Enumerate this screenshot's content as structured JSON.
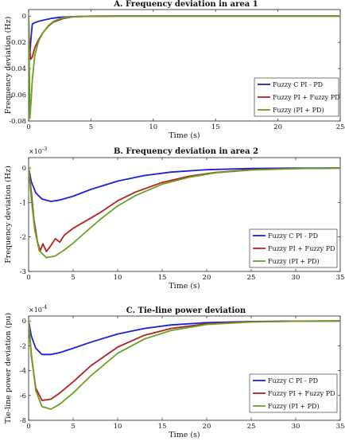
{
  "chart_data": [
    {
      "type": "line",
      "title": "A. Frequency deviation in area 1",
      "xlabel": "Time (s)",
      "ylabel": "Frequency deviation (Hz)",
      "xlim": [
        0,
        25
      ],
      "ylim": [
        -0.08,
        0.005
      ],
      "xticks": [
        0,
        5,
        10,
        15,
        20,
        25
      ],
      "xtick_labels": [
        "0",
        "5",
        "10",
        "15",
        "20",
        "25"
      ],
      "yticks": [
        0,
        -0.02,
        -0.04,
        -0.06,
        -0.08
      ],
      "ytick_labels": [
        "0",
        "-0.02",
        "-0.04",
        "-0.06",
        "-0.08"
      ],
      "exponent_label": "",
      "legend_position": "lower-right",
      "series": [
        {
          "name": "Fuzzy C PI - PD",
          "color": "#1f1fd6",
          "x": [
            0,
            0.05,
            0.12,
            0.2,
            0.3,
            0.5,
            0.8,
            1.2,
            1.8,
            2.5,
            3.5,
            5,
            7,
            10,
            15,
            25
          ],
          "y": [
            0,
            -0.02,
            -0.026,
            -0.016,
            -0.006,
            -0.005,
            -0.004,
            -0.003,
            -0.0018,
            -0.0009,
            -0.0004,
            -0.0001,
            0,
            0,
            0,
            0
          ]
        },
        {
          "name": "Fuzzy PI + Fuzzy PD",
          "color": "#b22222",
          "x": [
            0,
            0.05,
            0.15,
            0.3,
            0.5,
            0.8,
            1.2,
            1.6,
            2,
            2.8,
            3.5,
            5,
            7,
            10,
            15,
            25
          ],
          "y": [
            0,
            -0.018,
            -0.033,
            -0.031,
            -0.024,
            -0.018,
            -0.012,
            -0.0075,
            -0.0045,
            -0.0018,
            -0.0006,
            -0.0001,
            0,
            0,
            0,
            0
          ]
        },
        {
          "name": "Fuzzy (PI + PD)",
          "color": "#6aa121",
          "x": [
            0,
            0.05,
            0.1,
            0.2,
            0.3,
            0.5,
            0.8,
            1.2,
            1.6,
            2,
            2.5,
            3,
            4,
            5,
            7,
            10,
            15,
            25
          ],
          "y": [
            0,
            -0.035,
            -0.078,
            -0.065,
            -0.048,
            -0.03,
            -0.019,
            -0.012,
            -0.007,
            -0.004,
            -0.002,
            -0.0009,
            -0.0002,
            0,
            0,
            0,
            0,
            0
          ]
        }
      ]
    },
    {
      "type": "line",
      "title": "B. Frequency deviation in area 2",
      "xlabel": "Time (s)",
      "ylabel": "Frequency deviation (Hz)",
      "xlim": [
        0,
        35
      ],
      "ylim": [
        -3,
        0.3
      ],
      "xticks": [
        0,
        5,
        10,
        15,
        20,
        25,
        30,
        35
      ],
      "xtick_labels": [
        "0",
        "5",
        "10",
        "15",
        "20",
        "25",
        "30",
        "35"
      ],
      "yticks": [
        0,
        -1,
        -2,
        -3
      ],
      "ytick_labels": [
        "0",
        "-1",
        "-2",
        "-3"
      ],
      "exponent_label": "×10",
      "exponent_power": "-3",
      "legend_position": "lower-right",
      "series": [
        {
          "name": "Fuzzy C PI - PD",
          "color": "#1f1fd6",
          "x": [
            0,
            0.3,
            0.8,
            1.5,
            2.5,
            3.5,
            5,
            7,
            10,
            13,
            16,
            20,
            25,
            30,
            35
          ],
          "y": [
            0,
            -0.4,
            -0.72,
            -0.9,
            -0.97,
            -0.93,
            -0.82,
            -0.62,
            -0.38,
            -0.22,
            -0.12,
            -0.05,
            -0.015,
            -0.004,
            -0.001
          ]
        },
        {
          "name": "Fuzzy PI + Fuzzy PD",
          "color": "#b22222",
          "x": [
            0,
            0.3,
            0.6,
            1,
            1.3,
            1.6,
            2,
            2.5,
            3,
            3.5,
            4,
            5,
            6,
            8,
            10,
            12,
            15,
            18,
            21,
            25,
            30,
            35
          ],
          "y": [
            0,
            -0.7,
            -1.5,
            -2.15,
            -2.4,
            -2.2,
            -2.42,
            -2.25,
            -2.05,
            -2.15,
            -1.95,
            -1.75,
            -1.6,
            -1.3,
            -0.95,
            -0.7,
            -0.42,
            -0.24,
            -0.13,
            -0.05,
            -0.015,
            -0.004
          ]
        },
        {
          "name": "Fuzzy (PI + PD)",
          "color": "#6aa121",
          "x": [
            0,
            0.3,
            0.7,
            1.2,
            2,
            3,
            4,
            5,
            6,
            8,
            10,
            12,
            15,
            18,
            21,
            25,
            30,
            35
          ],
          "y": [
            0,
            -0.9,
            -1.8,
            -2.4,
            -2.6,
            -2.55,
            -2.38,
            -2.18,
            -1.95,
            -1.5,
            -1.1,
            -0.8,
            -0.47,
            -0.27,
            -0.14,
            -0.06,
            -0.018,
            -0.005
          ]
        }
      ]
    },
    {
      "type": "line",
      "title": "C. Tie-line power deviation",
      "xlabel": "Time (s)",
      "ylabel": "Tie-line power deviation (pu)",
      "xlim": [
        0,
        35
      ],
      "ylim": [
        -8,
        0.4
      ],
      "xticks": [
        0,
        5,
        10,
        15,
        20,
        25,
        30,
        35
      ],
      "xtick_labels": [
        "0",
        "5",
        "10",
        "15",
        "20",
        "25",
        "30",
        "35"
      ],
      "yticks": [
        0,
        -2,
        -4,
        -6,
        -8
      ],
      "ytick_labels": [
        "0",
        "-2",
        "-4",
        "-6",
        "-8"
      ],
      "exponent_label": "×10",
      "exponent_power": "-4",
      "legend_position": "lower-right",
      "series": [
        {
          "name": "Fuzzy C PI - PD",
          "color": "#1f1fd6",
          "x": [
            0,
            0.3,
            0.8,
            1.5,
            2.5,
            3.5,
            5,
            7,
            10,
            13,
            16,
            20,
            25,
            30,
            35
          ],
          "y": [
            0,
            -1.2,
            -2.2,
            -2.7,
            -2.7,
            -2.55,
            -2.2,
            -1.7,
            -1.05,
            -0.6,
            -0.32,
            -0.13,
            -0.04,
            -0.01,
            0
          ]
        },
        {
          "name": "Fuzzy PI + Fuzzy PD",
          "color": "#b22222",
          "x": [
            0,
            0.3,
            0.8,
            1.5,
            2.5,
            3.5,
            5,
            7,
            10,
            13,
            16,
            20,
            25,
            30,
            35
          ],
          "y": [
            0,
            -2.8,
            -5.4,
            -6.4,
            -6.3,
            -5.8,
            -4.9,
            -3.6,
            -2.1,
            -1.15,
            -0.6,
            -0.22,
            -0.06,
            -0.015,
            0
          ]
        },
        {
          "name": "Fuzzy (PI + PD)",
          "color": "#6aa121",
          "x": [
            0,
            0.3,
            0.8,
            1.5,
            2.5,
            3.5,
            5,
            7,
            10,
            13,
            16,
            20,
            25,
            30,
            35
          ],
          "y": [
            0,
            -2.6,
            -5.6,
            -6.9,
            -7.1,
            -6.7,
            -5.8,
            -4.4,
            -2.6,
            -1.45,
            -0.76,
            -0.28,
            -0.08,
            -0.02,
            0
          ]
        }
      ]
    }
  ]
}
